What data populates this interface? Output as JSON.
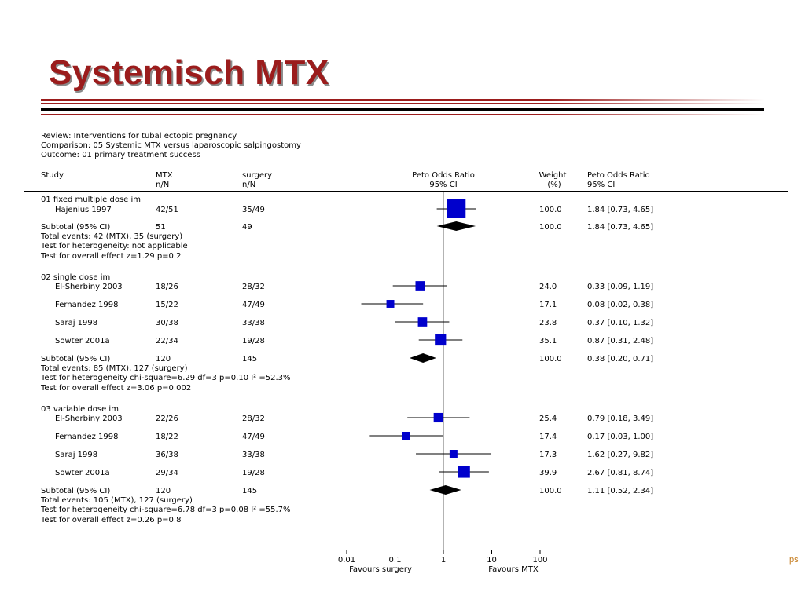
{
  "slide": {
    "title": "Systemisch MTX",
    "corner_text": "ps"
  },
  "chart_data": {
    "type": "forest",
    "header": {
      "review": "Review:  Interventions for tubal ectopic pregnancy",
      "comparison": "Comparison:  05 Systemic MTX versus laparoscopic salpingostomy",
      "outcome": "Outcome:  01 primary treatment success"
    },
    "columns": {
      "study": "Study",
      "mtx_1": "MTX",
      "mtx_2": "n/N",
      "surgery_1": "surgery",
      "surgery_2": "n/N",
      "or_1": "Peto Odds Ratio",
      "or_2": "95% CI",
      "weight_1": "Weight",
      "weight_2": "(%)",
      "orci_1": "Peto Odds Ratio",
      "orci_2": "95% CI"
    },
    "x_axis": {
      "scale": "log",
      "ticks": [
        0.01,
        0.1,
        1,
        10,
        100
      ],
      "tick_labels": [
        "0.01",
        "0.1",
        "1",
        "10",
        "100"
      ],
      "left_label": "Favours surgery",
      "right_label": "Favours MTX"
    },
    "groups": [
      {
        "title": "01 fixed multiple dose im",
        "studies": [
          {
            "name": "Hajenius 1997",
            "mtx": "42/51",
            "surgery": "35/49",
            "or": 1.84,
            "lo": 0.73,
            "hi": 4.65,
            "weight": "100.0",
            "ci_text": "1.84 [0.73, 4.65]"
          }
        ],
        "subtotal": {
          "label": "Subtotal (95% CI)",
          "mtx": "51",
          "surgery": "49",
          "or": 1.84,
          "lo": 0.73,
          "hi": 4.65,
          "weight": "100.0",
          "ci_text": "1.84 [0.73, 4.65]"
        },
        "notes": [
          "Total events: 42 (MTX), 35 (surgery)",
          "Test for heterogeneity: not applicable",
          "Test for overall effect z=1.29  p=0.2"
        ]
      },
      {
        "title": "02 single dose im",
        "studies": [
          {
            "name": "El-Sherbiny 2003",
            "mtx": "18/26",
            "surgery": "28/32",
            "or": 0.33,
            "lo": 0.09,
            "hi": 1.19,
            "weight": "24.0",
            "ci_text": "0.33 [0.09, 1.19]"
          },
          {
            "name": "Fernandez 1998",
            "mtx": "15/22",
            "surgery": "47/49",
            "or": 0.08,
            "lo": 0.02,
            "hi": 0.38,
            "weight": "17.1",
            "ci_text": "0.08 [0.02, 0.38]"
          },
          {
            "name": "Saraj 1998",
            "mtx": "30/38",
            "surgery": "33/38",
            "or": 0.37,
            "lo": 0.1,
            "hi": 1.32,
            "weight": "23.8",
            "ci_text": "0.37 [0.10, 1.32]"
          },
          {
            "name": "Sowter 2001a",
            "mtx": "22/34",
            "surgery": "19/28",
            "or": 0.87,
            "lo": 0.31,
            "hi": 2.48,
            "weight": "35.1",
            "ci_text": "0.87 [0.31, 2.48]"
          }
        ],
        "subtotal": {
          "label": "Subtotal (95% CI)",
          "mtx": "120",
          "surgery": "145",
          "or": 0.38,
          "lo": 0.2,
          "hi": 0.71,
          "weight": "100.0",
          "ci_text": "0.38 [0.20, 0.71]"
        },
        "notes": [
          "Total events: 85 (MTX), 127 (surgery)",
          "Test for heterogeneity chi-square=6.29 df=3 p=0.10 I² =52.3%",
          "Test for overall effect z=3.06  p=0.002"
        ]
      },
      {
        "title": "03 variable dose im",
        "studies": [
          {
            "name": "El-Sherbiny 2003",
            "mtx": "22/26",
            "surgery": "28/32",
            "or": 0.79,
            "lo": 0.18,
            "hi": 3.49,
            "weight": "25.4",
            "ci_text": "0.79 [0.18, 3.49]"
          },
          {
            "name": "Fernandez 1998",
            "mtx": "18/22",
            "surgery": "47/49",
            "or": 0.17,
            "lo": 0.03,
            "hi": 1.0,
            "weight": "17.4",
            "ci_text": "0.17 [0.03, 1.00]"
          },
          {
            "name": "Saraj 1998",
            "mtx": "36/38",
            "surgery": "33/38",
            "or": 1.62,
            "lo": 0.27,
            "hi": 9.82,
            "weight": "17.3",
            "ci_text": "1.62 [0.27, 9.82]"
          },
          {
            "name": "Sowter 2001a",
            "mtx": "29/34",
            "surgery": "19/28",
            "or": 2.67,
            "lo": 0.81,
            "hi": 8.74,
            "weight": "39.9",
            "ci_text": "2.67 [0.81, 8.74]"
          }
        ],
        "subtotal": {
          "label": "Subtotal (95% CI)",
          "mtx": "120",
          "surgery": "145",
          "or": 1.11,
          "lo": 0.52,
          "hi": 2.34,
          "weight": "100.0",
          "ci_text": "1.11 [0.52, 2.34]"
        },
        "notes": [
          "Total events: 105 (MTX), 127 (surgery)",
          "Test for heterogeneity chi-square=6.78 df=3 p=0.08 I² =55.7%",
          "Test for overall effect z=0.26  p=0.8"
        ]
      }
    ],
    "colors": {
      "square": "#0000cc",
      "diamond": "#000000",
      "title": "#9b1c1c"
    }
  }
}
